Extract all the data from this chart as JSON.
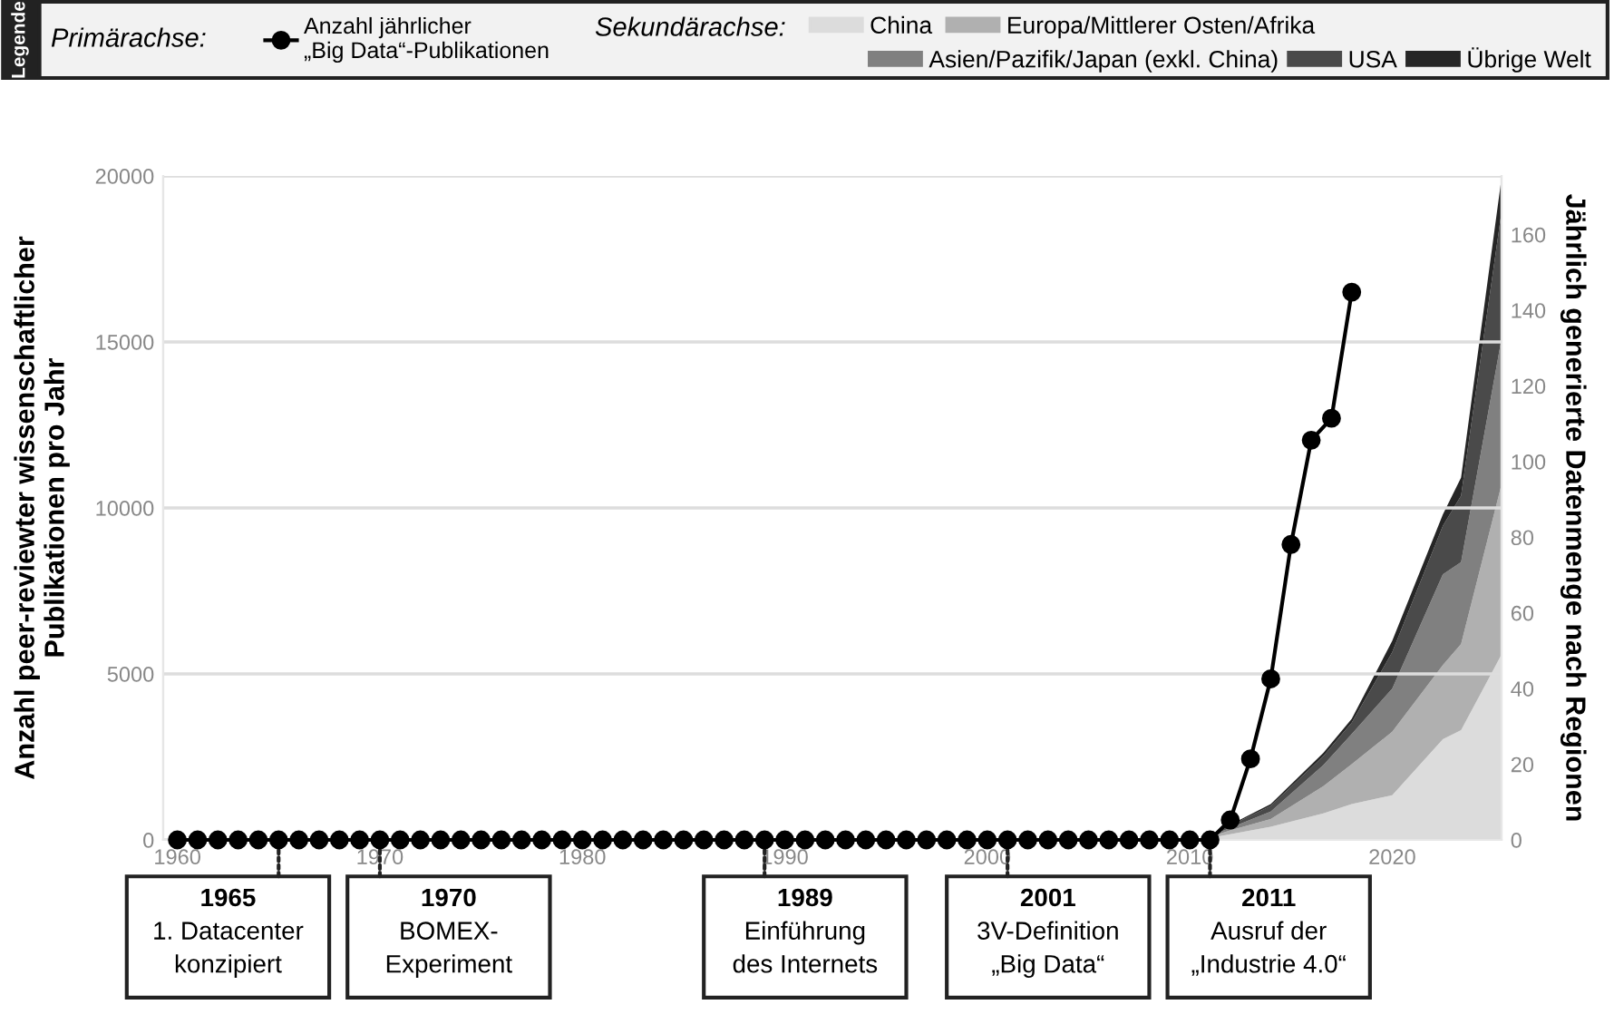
{
  "chart_data": {
    "type": "line",
    "ylabel": "Anzahl peer-reviewter wissenschaftlicher\nPublikationen pro Jahr",
    "y2label": "Jährlich generierte Datenmenge nach Regionen",
    "xlim": [
      1959.3,
      2025.4
    ],
    "xticks": [
      1960,
      1970,
      1980,
      1990,
      2000,
      2010,
      2020
    ],
    "ylim": [
      0,
      20000
    ],
    "yticks": [
      0,
      5000,
      10000,
      15000,
      20000
    ],
    "y2lim": [
      0,
      175.5
    ],
    "y2ticks": [
      0,
      20,
      40,
      60,
      80,
      100,
      120,
      140,
      160
    ],
    "grid": "y",
    "legend": "top",
    "line_style": "solid",
    "series": [
      {
        "name": "Anzahl jährlicher\n„Big Data“-Publikationen",
        "marker": "circle",
        "color": "#000000",
        "x": [
          1960,
          1961,
          1962,
          1963,
          1964,
          1965,
          1966,
          1967,
          1968,
          1969,
          1970,
          1971,
          1972,
          1973,
          1974,
          1975,
          1976,
          1977,
          1978,
          1979,
          1980,
          1981,
          1982,
          1983,
          1984,
          1985,
          1986,
          1987,
          1988,
          1989,
          1990,
          1991,
          1992,
          1993,
          1994,
          1995,
          1996,
          1997,
          1998,
          1999,
          2000,
          2001,
          2002,
          2003,
          2004,
          2005,
          2006,
          2007,
          2008,
          2009,
          2010,
          2011,
          2012,
          2013,
          2014,
          2015,
          2016,
          2017,
          2018
        ],
        "values": [
          0,
          0,
          0,
          0,
          0,
          0,
          0,
          0,
          0,
          0,
          0,
          0,
          0,
          0,
          0,
          0,
          0,
          0,
          0,
          0,
          0,
          0,
          0,
          0,
          0,
          0,
          0,
          0,
          0,
          0,
          0,
          0,
          0,
          0,
          0,
          0,
          0,
          0,
          0,
          0,
          0,
          0,
          0,
          0,
          0,
          0,
          0,
          0,
          0,
          0,
          0,
          0,
          600,
          2440,
          4850,
          8900,
          12040,
          12700,
          16500
        ]
      },
      {
        "name": "China",
        "type": "area",
        "axis": "y2",
        "color": "#dcdcdc",
        "x": [
          2010.5,
          2012,
          2014,
          2016.6,
          2018,
          2020,
          2022.5,
          2023.4,
          2025.4
        ],
        "values": [
          0,
          1.5,
          3.5,
          7,
          9.5,
          11.8,
          26.6,
          29,
          49
        ]
      },
      {
        "name": "Europa/Mittlerer Osten/Afrika",
        "type": "area",
        "axis": "y2",
        "color": "#b0b0b0",
        "x": [
          2010.5,
          2012,
          2014,
          2016.6,
          2018,
          2020,
          2022.5,
          2023.4,
          2025.4
        ],
        "values": [
          0,
          1,
          2,
          7.2,
          10.5,
          16.8,
          19.6,
          22.8,
          45
        ]
      },
      {
        "name": "Asien/Pazifik/Japan (exkl. China)",
        "type": "area",
        "axis": "y2",
        "color": "#808080",
        "x": [
          2010.5,
          2012,
          2014,
          2016.6,
          2018,
          2020,
          2022.5,
          2023.4,
          2025.4
        ],
        "values": [
          0,
          0.7,
          2,
          5.6,
          8,
          11.4,
          24,
          21.6,
          38.5
        ]
      },
      {
        "name": "USA",
        "type": "area",
        "axis": "y2",
        "color": "#4a4a4a",
        "x": [
          2010.5,
          2012,
          2014,
          2016.6,
          2018,
          2020,
          2022.5,
          2023.4,
          2025.4
        ],
        "values": [
          0,
          0.6,
          1.5,
          2.4,
          3,
          9.6,
          12.8,
          17.6,
          33.5
        ]
      },
      {
        "name": "Übrige Welt",
        "type": "area",
        "axis": "y2",
        "color": "#262626",
        "x": [
          2010.5,
          2012,
          2014,
          2016.6,
          2018,
          2020,
          2022.5,
          2023.4,
          2025.4
        ],
        "values": [
          0,
          0.2,
          0.5,
          0.8,
          1,
          3,
          3,
          4.8,
          9
        ]
      }
    ],
    "stacked": true,
    "annotations": [
      "Legende",
      "Primärachse:",
      "Sekundärachse:",
      {
        "text": "1965\n1. Datacenter\nkonzipiert",
        "x": 1965,
        "y": 0
      },
      {
        "text": "1970\nBOMEX-\nExperiment",
        "x": 1970,
        "y": 0
      },
      {
        "text": "1989\nEinführung\ndes Internets",
        "x": 1989,
        "y": 0
      },
      {
        "text": "2001\n3V-Definition\n„Big Data“",
        "x": 2001,
        "y": 0
      },
      {
        "text": "2011\nAusruf der\n„Industrie 4.0“",
        "x": 2011,
        "y": 0
      }
    ]
  }
}
